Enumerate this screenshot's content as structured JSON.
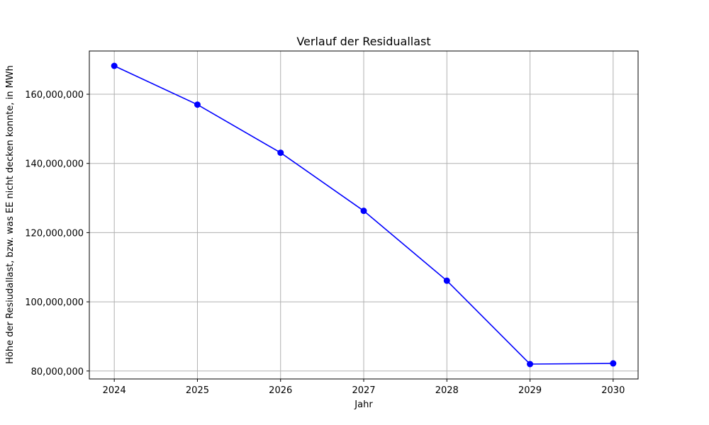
{
  "chart_data": {
    "type": "line",
    "title": "Verlauf der Residuallast",
    "xlabel": "Jahr",
    "ylabel": "Höhe der Resiudallast, bzw. was EE nicht decken konnte, in MWh",
    "x": [
      2024,
      2025,
      2026,
      2027,
      2028,
      2029,
      2030
    ],
    "series": [
      {
        "values": [
          168200000,
          157000000,
          143100000,
          126300000,
          106100000,
          82000000,
          82200000
        ],
        "color": "#0000ff",
        "marker": "circle"
      }
    ],
    "xticks": [
      2024,
      2025,
      2026,
      2027,
      2028,
      2029,
      2030
    ],
    "yticks": [
      80000000,
      100000000,
      120000000,
      140000000,
      160000000
    ],
    "ytick_labels": [
      "80,000,000",
      "100,000,000",
      "120,000,000",
      "140,000,000",
      "160,000,000"
    ],
    "xlim": [
      2023.7,
      2030.3
    ],
    "ylim": [
      77700000,
      172500000
    ],
    "grid": true,
    "colors": {
      "grid": "#b0b0b0",
      "axes": "#000000"
    }
  }
}
